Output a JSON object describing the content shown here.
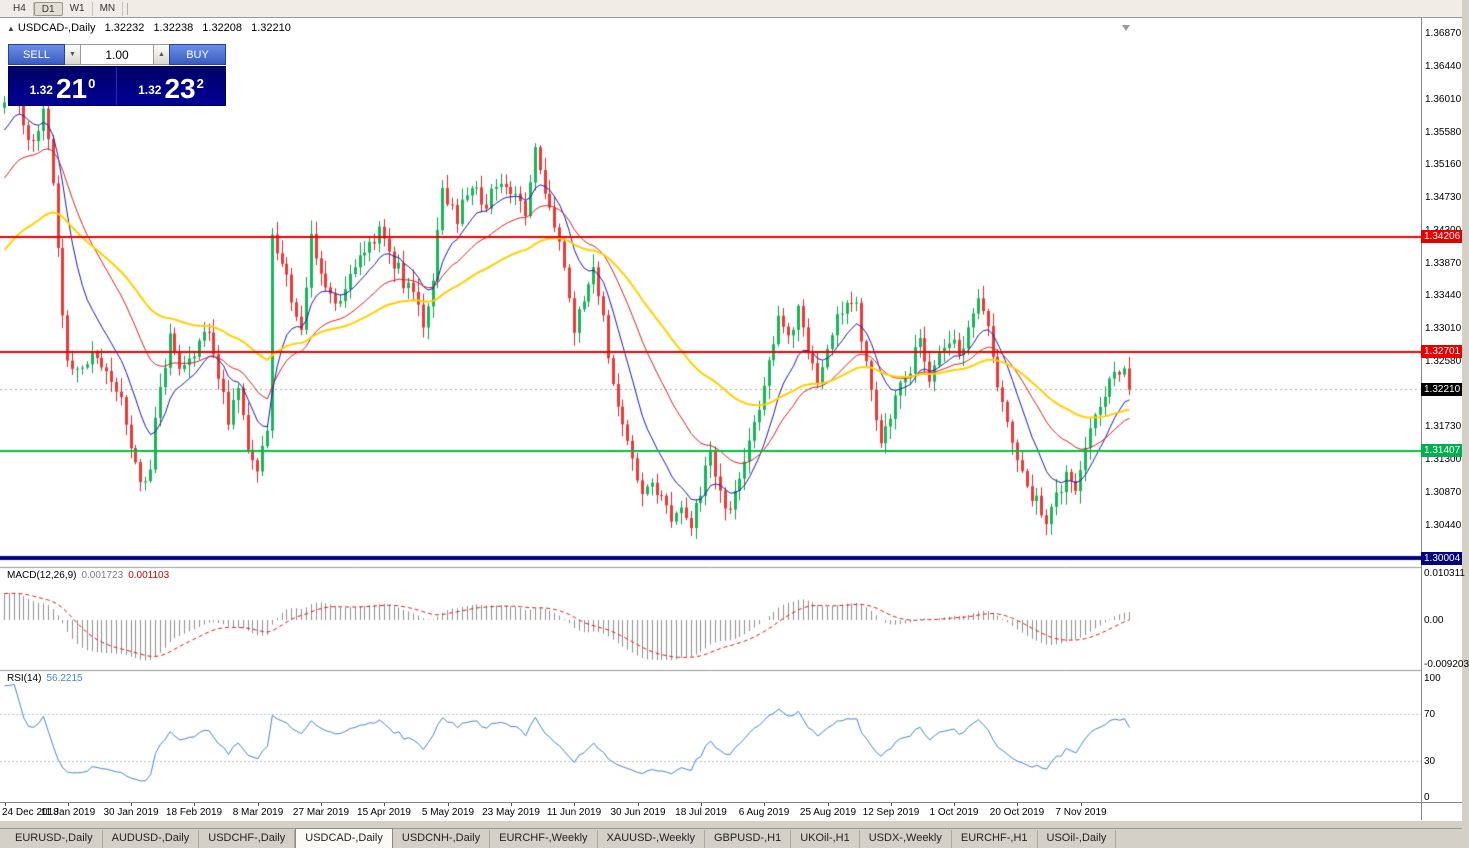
{
  "timeframe_bar": {
    "items": [
      "H4",
      "D1",
      "W1",
      "MN"
    ],
    "active": "D1"
  },
  "chart_header": {
    "collapse_icon": "▲",
    "symbol": "USDCAD-,Daily",
    "open": "1.32232",
    "high": "1.32238",
    "low": "1.32208",
    "close": "1.32210"
  },
  "trade_panel": {
    "sell_label": "SELL",
    "buy_label": "BUY",
    "volume": "1.00",
    "spin_down_icon": "▼",
    "spin_up_icon": "▲",
    "sell_price": {
      "small": "1.32",
      "big": "21",
      "sup": "0"
    },
    "buy_price": {
      "small": "1.32",
      "big": "23",
      "sup": "2"
    }
  },
  "price_axis": {
    "ticks": [
      "1.36870",
      "1.36440",
      "1.36010",
      "1.35580",
      "1.35160",
      "1.34730",
      "1.34300",
      "1.33870",
      "1.33440",
      "1.33010",
      "1.32580",
      "1.31730",
      "1.31300",
      "1.30870",
      "1.30440"
    ],
    "tags": [
      {
        "label": "1.34206",
        "price": 1.34206,
        "bg": "#e60000"
      },
      {
        "label": "1.32701",
        "price": 1.32701,
        "bg": "#e60000"
      },
      {
        "label": "1.32210",
        "price": 1.3221,
        "bg": "#000000"
      },
      {
        "label": "1.31407",
        "price": 1.31407,
        "bg": "#00b050"
      },
      {
        "label": "1.30004",
        "price": 1.30004,
        "bg": "#000080"
      }
    ]
  },
  "levels": [
    {
      "price": 1.34206,
      "color": "#ee0000",
      "width": 2,
      "style": "solid"
    },
    {
      "price": 1.32701,
      "color": "#ee0000",
      "width": 2,
      "style": "solid"
    },
    {
      "price": 1.3221,
      "color": "#b0b0b0",
      "width": 1,
      "style": "dot"
    },
    {
      "price": 1.31407,
      "color": "#00c040",
      "width": 2,
      "style": "solid"
    },
    {
      "price": 1.30004,
      "color": "#000080",
      "width": 4,
      "style": "solid"
    }
  ],
  "macd_panel": {
    "title": "MACD(12,26,9)",
    "value_main": "0.001723",
    "value_signal": "0.001103",
    "axis_top": "0.010311",
    "axis_mid": "0.00",
    "axis_bottom": "-0.009203"
  },
  "rsi_panel": {
    "title": "RSI(14)",
    "value": "56.2215",
    "axis": [
      "100",
      "70",
      "30",
      "0"
    ],
    "guide_levels": [
      70,
      30
    ]
  },
  "date_axis": {
    "labels": [
      "24 Dec 2018",
      "11 Jan 2019",
      "30 Jan 2019",
      "18 Feb 2019",
      "8 Mar 2019",
      "27 Mar 2019",
      "15 Apr 2019",
      "5 May 2019",
      "23 May 2019",
      "11 Jun 2019",
      "30 Jun 2019",
      "18 Jul 2019",
      "6 Aug 2019",
      "25 Aug 2019",
      "12 Sep 2019",
      "1 Oct 2019",
      "20 Oct 2019",
      "7 Nov 2019"
    ]
  },
  "tab_bar": {
    "tabs": [
      "EURUSD-,Daily",
      "AUDUSD-,Daily",
      "USDCHF-,Daily",
      "USDCAD-,Daily",
      "USDCNH-,Daily",
      "EURCHF-,Weekly",
      "XAUUSD-,Weekly",
      "GBPUSD-,H1",
      "UKOil-,H1",
      "USDX-,Weekly",
      "EURCHF-,H1",
      "USOil-,Daily"
    ],
    "active_index": 3
  },
  "chart_data": {
    "type": "candlestick",
    "symbol": "USDCAD",
    "timeframe": "Daily",
    "bars": 232,
    "bars_per_label": 13,
    "price_range_visible": [
      1.2989,
      1.3704
    ],
    "last": {
      "open": 1.32232,
      "high": 1.32238,
      "low": 1.32208,
      "close": 1.3221
    },
    "up_color": "#19b45c",
    "down_color": "#e43b3b",
    "moving_averages": [
      {
        "name": "fast-ema",
        "period": 10,
        "color": "#1c1ca8",
        "width": 1
      },
      {
        "name": "mid-ema",
        "period": 25,
        "color": "#d02525",
        "width": 1
      },
      {
        "name": "slow-ema",
        "period": 55,
        "color": "#ffd000",
        "width": 2
      }
    ],
    "macd": {
      "fast": 12,
      "slow": 26,
      "signal": 9,
      "histogram_color": "#8f8f8f",
      "signal_color": "#d22222"
    },
    "rsi": {
      "period": 14,
      "color": "#4a86c8",
      "current": 56.2215
    },
    "close_waypoints": [
      [
        0,
        1.3595
      ],
      [
        2,
        1.3615
      ],
      [
        4,
        1.357
      ],
      [
        6,
        1.3545
      ],
      [
        8,
        1.3588
      ],
      [
        10,
        1.3495
      ],
      [
        12,
        1.332
      ],
      [
        13,
        1.3262
      ],
      [
        15,
        1.3242
      ],
      [
        18,
        1.3268
      ],
      [
        21,
        1.3248
      ],
      [
        24,
        1.3215
      ],
      [
        26,
        1.3155
      ],
      [
        28,
        1.3098
      ],
      [
        30,
        1.3125
      ],
      [
        32,
        1.3228
      ],
      [
        34,
        1.3288
      ],
      [
        36,
        1.3248
      ],
      [
        39,
        1.3268
      ],
      [
        42,
        1.3298
      ],
      [
        44,
        1.3238
      ],
      [
        46,
        1.3182
      ],
      [
        48,
        1.3222
      ],
      [
        50,
        1.3152
      ],
      [
        52,
        1.3118
      ],
      [
        54,
        1.3165
      ],
      [
        55,
        1.3425
      ],
      [
        57,
        1.3392
      ],
      [
        59,
        1.3342
      ],
      [
        61,
        1.3305
      ],
      [
        63,
        1.3418
      ],
      [
        65,
        1.3362
      ],
      [
        68,
        1.3332
      ],
      [
        71,
        1.3372
      ],
      [
        74,
        1.3398
      ],
      [
        77,
        1.3428
      ],
      [
        80,
        1.3388
      ],
      [
        83,
        1.3352
      ],
      [
        86,
        1.3312
      ],
      [
        88,
        1.3362
      ],
      [
        90,
        1.3478
      ],
      [
        93,
        1.3448
      ],
      [
        96,
        1.3482
      ],
      [
        99,
        1.3462
      ],
      [
        102,
        1.3498
      ],
      [
        105,
        1.3478
      ],
      [
        107,
        1.3452
      ],
      [
        109,
        1.3528
      ],
      [
        111,
        1.3482
      ],
      [
        113,
        1.3438
      ],
      [
        115,
        1.3388
      ],
      [
        117,
        1.3302
      ],
      [
        119,
        1.3342
      ],
      [
        121,
        1.3388
      ],
      [
        123,
        1.3308
      ],
      [
        125,
        1.3232
      ],
      [
        127,
        1.3172
      ],
      [
        129,
        1.3122
      ],
      [
        131,
        1.3082
      ],
      [
        133,
        1.3092
      ],
      [
        135,
        1.3072
      ],
      [
        137,
        1.3048
      ],
      [
        139,
        1.3062
      ],
      [
        141,
        1.3038
      ],
      [
        143,
        1.3092
      ],
      [
        145,
        1.3132
      ],
      [
        147,
        1.3082
      ],
      [
        149,
        1.3068
      ],
      [
        151,
        1.3112
      ],
      [
        153,
        1.3162
      ],
      [
        155,
        1.3192
      ],
      [
        157,
        1.3262
      ],
      [
        159,
        1.3312
      ],
      [
        161,
        1.3292
      ],
      [
        163,
        1.3322
      ],
      [
        165,
        1.3272
      ],
      [
        167,
        1.3232
      ],
      [
        169,
        1.3282
      ],
      [
        171,
        1.3312
      ],
      [
        173,
        1.3332
      ],
      [
        175,
        1.3345
      ],
      [
        176,
        1.3292
      ],
      [
        178,
        1.3222
      ],
      [
        180,
        1.3152
      ],
      [
        182,
        1.3182
      ],
      [
        184,
        1.3232
      ],
      [
        186,
        1.3252
      ],
      [
        188,
        1.3282
      ],
      [
        190,
        1.3242
      ],
      [
        192,
        1.3262
      ],
      [
        194,
        1.3292
      ],
      [
        196,
        1.3262
      ],
      [
        198,
        1.3302
      ],
      [
        200,
        1.3332
      ],
      [
        202,
        1.3302
      ],
      [
        204,
        1.3222
      ],
      [
        206,
        1.3182
      ],
      [
        208,
        1.3132
      ],
      [
        210,
        1.3092
      ],
      [
        212,
        1.3072
      ],
      [
        214,
        1.3048
      ],
      [
        216,
        1.3082
      ],
      [
        218,
        1.3112
      ],
      [
        220,
        1.3092
      ],
      [
        222,
        1.3142
      ],
      [
        224,
        1.3182
      ],
      [
        226,
        1.3222
      ],
      [
        228,
        1.3252
      ],
      [
        230,
        1.3238
      ],
      [
        231,
        1.3221
      ]
    ]
  }
}
